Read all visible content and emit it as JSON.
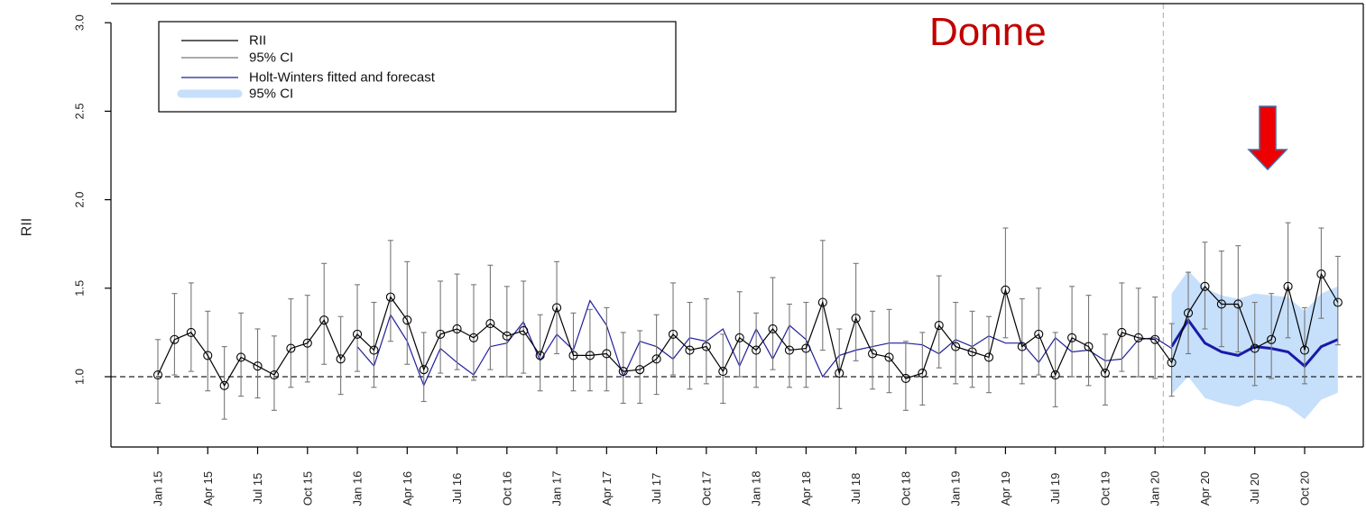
{
  "chart_data": {
    "type": "line",
    "title": "",
    "xlabel": "",
    "ylabel": "RII",
    "ylim": [
      0.55,
      3.0
    ],
    "yticks": [
      "1.0",
      "1.5",
      "2.0",
      "2.5",
      "3.0"
    ],
    "xtick_labels": [
      "Jan 15",
      "Apr 15",
      "Jul 15",
      "Oct 15",
      "Jan 16",
      "Apr 16",
      "Jul 16",
      "Oct 16",
      "Jan 17",
      "Apr 17",
      "Jul 17",
      "Oct 17",
      "Jan 18",
      "Apr 18",
      "Jul 18",
      "Oct 18",
      "Jan 19",
      "Apr 19",
      "Jul 19",
      "Oct 19",
      "Jan 20",
      "Apr 20",
      "Jul 20",
      "Oct 20"
    ],
    "reference_line": 1.0,
    "forecast_start_month": "Mar 20",
    "annotation": "Donne",
    "colors": {
      "rii": "#000000",
      "ci": "#777777",
      "hw": "#1f1f9a",
      "hw_ci": "#c6dffb",
      "annotation": "#c00000",
      "arrow": "#ee0000"
    },
    "legend": {
      "position": "top-left",
      "entries": [
        {
          "label": "RII"
        },
        {
          "label": "95% CI"
        },
        {
          "label": "Holt-Winters fitted and forecast"
        },
        {
          "label": "95% CI"
        }
      ]
    },
    "rii": [
      1.01,
      1.21,
      1.25,
      1.12,
      0.95,
      1.11,
      1.06,
      1.01,
      1.16,
      1.19,
      1.32,
      1.1,
      1.24,
      1.15,
      1.45,
      1.32,
      1.04,
      1.24,
      1.27,
      1.22,
      1.3,
      1.23,
      1.26,
      1.12,
      1.39,
      1.12,
      1.12,
      1.13,
      1.03,
      1.04,
      1.1,
      1.24,
      1.15,
      1.17,
      1.03,
      1.22,
      1.15,
      1.27,
      1.15,
      1.16,
      1.42,
      1.02,
      1.33,
      1.13,
      1.11,
      0.99,
      1.02,
      1.29,
      1.17,
      1.14,
      1.11,
      1.49,
      1.17,
      1.24,
      1.01,
      1.22,
      1.17,
      1.02,
      1.25,
      1.22,
      1.21,
      1.08,
      1.36,
      1.51,
      1.41,
      1.41,
      1.16,
      1.21,
      1.51,
      1.15,
      1.58,
      1.42
    ],
    "ci_lower": [
      0.85,
      1.01,
      1.03,
      0.92,
      0.76,
      0.89,
      0.88,
      0.81,
      0.94,
      0.97,
      1.07,
      0.9,
      1.03,
      0.94,
      1.2,
      1.07,
      0.86,
      1.02,
      1.04,
      0.98,
      1.04,
      1.0,
      1.02,
      0.92,
      1.13,
      0.92,
      0.92,
      0.92,
      0.85,
      0.85,
      0.9,
      1.01,
      0.93,
      0.96,
      0.85,
      1.0,
      0.94,
      1.04,
      0.94,
      0.94,
      1.15,
      0.82,
      1.09,
      0.93,
      0.91,
      0.81,
      0.84,
      1.05,
      0.96,
      0.94,
      0.91,
      1.22,
      0.96,
      1.01,
      0.83,
      1.0,
      0.95,
      0.84,
      1.03,
      1.0,
      0.99,
      0.89,
      1.13,
      1.27,
      1.17,
      1.14,
      0.95,
      0.99,
      1.22,
      0.96,
      1.33,
      1.18
    ],
    "ci_upper": [
      1.21,
      1.47,
      1.53,
      1.37,
      1.17,
      1.36,
      1.27,
      1.23,
      1.44,
      1.46,
      1.64,
      1.34,
      1.52,
      1.42,
      1.77,
      1.65,
      1.25,
      1.54,
      1.58,
      1.52,
      1.63,
      1.51,
      1.54,
      1.35,
      1.65,
      1.36,
      1.38,
      1.39,
      1.25,
      1.26,
      1.35,
      1.53,
      1.42,
      1.44,
      1.24,
      1.48,
      1.36,
      1.56,
      1.41,
      1.42,
      1.77,
      1.27,
      1.64,
      1.37,
      1.38,
      1.2,
      1.25,
      1.57,
      1.42,
      1.37,
      1.34,
      1.84,
      1.44,
      1.5,
      1.25,
      1.51,
      1.46,
      1.24,
      1.53,
      1.5,
      1.45,
      1.3,
      1.59,
      1.76,
      1.71,
      1.74,
      1.42,
      1.47,
      1.87,
      1.39,
      1.84,
      1.68
    ],
    "hw_fitted": [
      null,
      null,
      null,
      null,
      null,
      null,
      null,
      null,
      null,
      null,
      null,
      null,
      1.17,
      1.06,
      1.35,
      1.2,
      0.95,
      1.16,
      1.08,
      1.01,
      1.17,
      1.19,
      1.31,
      1.09,
      1.24,
      1.15,
      1.43,
      1.29,
      1.0,
      1.2,
      1.17,
      1.1,
      1.22,
      1.2,
      1.27,
      1.06,
      1.27,
      1.1,
      1.29,
      1.21,
      1.0,
      1.12,
      1.15,
      1.17,
      1.19,
      1.19,
      1.18,
      1.13,
      1.21,
      1.17,
      1.23,
      1.19,
      1.19,
      1.08,
      1.22,
      1.14,
      1.15,
      1.09,
      1.1,
      1.21,
      1.22,
      1.16,
      null,
      null,
      null,
      null,
      null,
      null,
      null,
      null,
      null,
      null
    ],
    "hw_forecast": [
      1.17,
      1.32,
      1.19,
      1.14,
      1.12,
      1.17,
      1.16,
      1.14,
      1.06,
      1.17,
      1.21
    ],
    "hw_forecast_lower": [
      0.9,
      1.0,
      0.88,
      0.85,
      0.83,
      0.87,
      0.86,
      0.83,
      0.76,
      0.87,
      0.91
    ],
    "hw_forecast_upper": [
      1.47,
      1.6,
      1.5,
      1.46,
      1.44,
      1.47,
      1.46,
      1.45,
      1.37,
      1.47,
      1.51
    ]
  }
}
